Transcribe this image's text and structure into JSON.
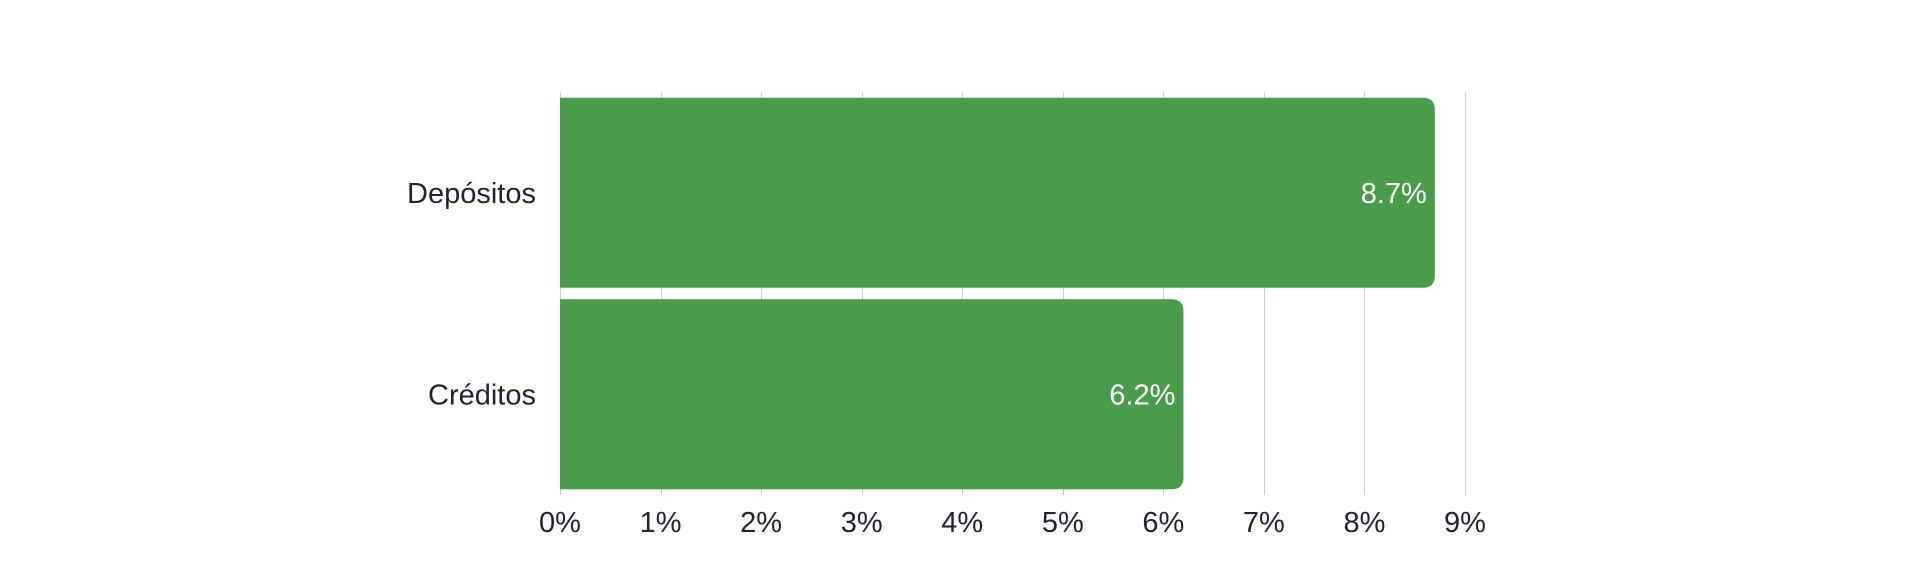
{
  "chart_data": {
    "type": "bar",
    "orientation": "horizontal",
    "categories": [
      "Depósitos",
      "Créditos"
    ],
    "values": [
      8.7,
      6.2
    ],
    "data_labels": [
      "8.7%",
      "6.2%"
    ],
    "xlim": [
      0,
      9
    ],
    "xticks": [
      0,
      1,
      2,
      3,
      4,
      5,
      6,
      7,
      8,
      9
    ],
    "tick_labels": [
      "0%",
      "1%",
      "2%",
      "3%",
      "4%",
      "5%",
      "6%",
      "7%",
      "8%",
      "9%"
    ],
    "grid": true,
    "bar_color": "#4a9b4a",
    "title": "",
    "xlabel": "",
    "ylabel": ""
  }
}
